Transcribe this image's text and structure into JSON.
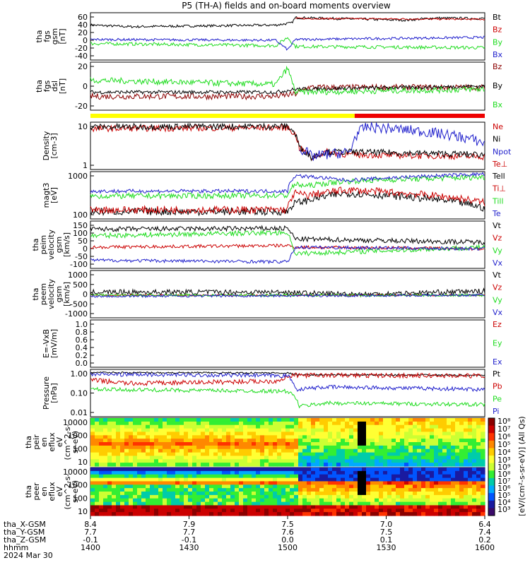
{
  "title": "P5 (TH-A) fields and on-board moments overview",
  "colors": {
    "black": "#000000",
    "red": "#cc0000",
    "green": "#1fdc1f",
    "blue": "#1f1fcc",
    "darkred": "#8b0000",
    "yellow": "#ffff00",
    "barred": "#ee0000"
  },
  "chart_data": [
    {
      "type": "line",
      "id": "p1",
      "ylabel": [
        "tha",
        "fgs",
        "gsm",
        "[nT]"
      ],
      "yticks": [
        "60",
        "40",
        "20",
        "0",
        "-20",
        "-40"
      ],
      "ylim": [
        -45,
        70
      ],
      "series": [
        {
          "name": "Bt",
          "color": "black",
          "segments": [
            [
              0,
              40
            ],
            [
              0.1,
              36
            ],
            [
              0.47,
              40
            ],
            [
              0.51,
              45
            ],
            [
              0.52,
              58
            ],
            [
              0.8,
              52
            ],
            [
              0.87,
              57
            ],
            [
              1,
              56
            ]
          ],
          "noise": 3
        },
        {
          "name": "Bz",
          "color": "red",
          "segments": [
            [
              0.52,
              56
            ],
            [
              1,
              54
            ]
          ],
          "noise": 2
        },
        {
          "name": "By",
          "color": "green",
          "segments": [
            [
              0,
              -5
            ],
            [
              0.47,
              -10
            ],
            [
              0.5,
              10
            ],
            [
              0.52,
              -12
            ],
            [
              1,
              -15
            ]
          ],
          "noise": 4
        },
        {
          "name": "Bx",
          "color": "blue",
          "segments": [
            [
              0,
              5
            ],
            [
              0.47,
              3
            ],
            [
              0.5,
              -20
            ],
            [
              0.52,
              5
            ],
            [
              1,
              10
            ]
          ],
          "noise": 3
        }
      ]
    },
    {
      "type": "line",
      "id": "p2",
      "ylabel": [
        "tha",
        "fgs",
        "dsl",
        "[nT]"
      ],
      "yticks": [
        "20",
        "0",
        "-20"
      ],
      "ylim": [
        -35,
        45
      ],
      "series": [
        {
          "name": "Bz",
          "color": "darkred",
          "segments": [
            [
              0,
              -12
            ],
            [
              0.47,
              -12
            ],
            [
              0.52,
              -8
            ],
            [
              0.55,
              3
            ],
            [
              1,
              3
            ]
          ],
          "noise": 5
        },
        {
          "name": "By",
          "color": "black",
          "segments": [
            [
              0,
              -5
            ],
            [
              0.47,
              -5
            ],
            [
              0.52,
              0
            ],
            [
              1,
              5
            ]
          ],
          "noise": 3
        },
        {
          "name": "Bx",
          "color": "green",
          "segments": [
            [
              0,
              15
            ],
            [
              0.47,
              8
            ],
            [
              0.5,
              35
            ],
            [
              0.52,
              -5
            ],
            [
              1,
              0
            ]
          ],
          "noise": 5
        }
      ]
    },
    {
      "type": "line",
      "id": "p3",
      "ylabel": [
        "Density",
        "[cm-3]"
      ],
      "yticks": [
        "10",
        "1"
      ],
      "ylim": [
        0.3,
        50
      ],
      "scale": "log",
      "series": [
        {
          "name": "Ne",
          "color": "red",
          "segments": [
            [
              0,
              25
            ],
            [
              0.5,
              28
            ],
            [
              0.53,
              3
            ],
            [
              0.56,
              1
            ],
            [
              0.6,
              2
            ],
            [
              0.65,
              1.5
            ],
            [
              1,
              1.2
            ]
          ],
          "noise": 0.15
        },
        {
          "name": "Ni",
          "color": "black",
          "segments": [
            [
              0,
              30
            ],
            [
              0.5,
              32
            ],
            [
              0.53,
              3
            ],
            [
              0.56,
              1.1
            ],
            [
              0.6,
              2
            ],
            [
              0.65,
              2
            ],
            [
              1,
              1.5
            ]
          ],
          "noise": 0.15
        },
        {
          "name": "Npot",
          "color": "blue",
          "segments": [
            [
              0.53,
              3
            ],
            [
              0.56,
              1.2
            ],
            [
              0.66,
              2
            ],
            [
              0.7,
              30
            ],
            [
              1,
              5
            ]
          ],
          "noise": 0.25
        },
        {
          "name": "Te⊥",
          "color": "red",
          "segments": [],
          "noise": 0
        }
      ]
    },
    {
      "type": "line",
      "id": "p4",
      "ylabel": [
        "magt3",
        "[eV]"
      ],
      "yticks": [
        "1000",
        "100"
      ],
      "ylim": [
        8,
        3000
      ],
      "scale": "log",
      "series": [
        {
          "name": "Tell",
          "color": "black",
          "segments": [
            [
              0,
              20
            ],
            [
              0.5,
              20
            ],
            [
              0.52,
              60
            ],
            [
              0.55,
              80
            ],
            [
              0.65,
              200
            ],
            [
              1,
              30
            ]
          ],
          "noise": 0.2
        },
        {
          "name": "Ti⊥",
          "color": "red",
          "segments": [
            [
              0,
              25
            ],
            [
              0.5,
              25
            ],
            [
              0.52,
              200
            ],
            [
              0.55,
              150
            ],
            [
              0.65,
              300
            ],
            [
              1,
              60
            ]
          ],
          "noise": 0.2
        },
        {
          "name": "Till",
          "color": "green",
          "segments": [
            [
              0,
              140
            ],
            [
              0.5,
              150
            ],
            [
              0.52,
              600
            ],
            [
              0.55,
              500
            ],
            [
              0.65,
              900
            ],
            [
              1,
              1500
            ]
          ],
          "noise": 0.15
        },
        {
          "name": "Te",
          "color": "blue",
          "segments": [
            [
              0,
              260
            ],
            [
              0.5,
              260
            ],
            [
              0.52,
              1800
            ],
            [
              0.65,
              1000
            ],
            [
              1,
              2200
            ]
          ],
          "noise": 0.1
        }
      ]
    },
    {
      "type": "line",
      "id": "p5",
      "ylabel": [
        "tha",
        "peim",
        "velocity",
        "gsm",
        "[km/s]"
      ],
      "yticks": [
        "150",
        "100",
        "50",
        "0",
        "-50",
        "-100"
      ],
      "ylim": [
        -120,
        170
      ],
      "series": [
        {
          "name": "Vt",
          "color": "black",
          "segments": [
            [
              0,
              120
            ],
            [
              0.5,
              125
            ],
            [
              0.52,
              60
            ],
            [
              1,
              40
            ]
          ],
          "noise": 15
        },
        {
          "name": "Vz",
          "color": "red",
          "segments": [
            [
              0,
              10
            ],
            [
              0.5,
              20
            ],
            [
              0.52,
              10
            ],
            [
              1,
              0
            ]
          ],
          "noise": 10
        },
        {
          "name": "Vy",
          "color": "green",
          "segments": [
            [
              0,
              80
            ],
            [
              0.5,
              100
            ],
            [
              0.52,
              -30
            ],
            [
              1,
              10
            ]
          ],
          "noise": 15
        },
        {
          "name": "Vx",
          "color": "blue",
          "segments": [
            [
              0,
              -70
            ],
            [
              0.5,
              -80
            ],
            [
              0.52,
              10
            ],
            [
              1,
              0
            ]
          ],
          "noise": 10
        }
      ]
    },
    {
      "type": "line",
      "id": "p6",
      "ylabel": [
        "tha",
        "peem",
        "velocity",
        "gsm",
        "[km/s]"
      ],
      "yticks": [
        "1000",
        "500",
        "0",
        "-500",
        "-1000"
      ],
      "ylim": [
        -1100,
        1200
      ],
      "series": [
        {
          "name": "Vt",
          "color": "black",
          "segments": [
            [
              0,
              150
            ],
            [
              0.5,
              150
            ],
            [
              0.55,
              100
            ],
            [
              0.7,
              50
            ],
            [
              1,
              200
            ]
          ],
          "noise": 120
        },
        {
          "name": "Vz",
          "color": "red",
          "segments": [
            [
              0,
              0
            ],
            [
              1,
              0
            ]
          ],
          "noise": 40
        },
        {
          "name": "Vy",
          "color": "green",
          "segments": [
            [
              0,
              0
            ],
            [
              1,
              0
            ]
          ],
          "noise": 60
        },
        {
          "name": "Vx",
          "color": "blue",
          "segments": [
            [
              0,
              -50
            ],
            [
              1,
              0
            ]
          ],
          "noise": 60
        }
      ]
    },
    {
      "type": "line",
      "id": "p7",
      "ylabel": [
        "E=-VxB",
        "[mV/m]"
      ],
      "yticks": [
        "1.0",
        "0.8",
        "0.6",
        "0.4",
        "0.2",
        "0.0"
      ],
      "ylim": [
        0,
        1
      ],
      "series": [
        {
          "name": "Ez",
          "color": "red",
          "segments": [],
          "noise": 0
        },
        {
          "name": "Ey",
          "color": "green",
          "segments": [],
          "noise": 0
        },
        {
          "name": "Ex",
          "color": "blue",
          "segments": [],
          "noise": 0
        }
      ]
    },
    {
      "type": "line",
      "id": "p8",
      "ylabel": [
        "Pressure",
        "[nPa]"
      ],
      "yticks": [
        "1.00",
        "0.10",
        "0.01"
      ],
      "ylim": [
        0.006,
        1.6
      ],
      "scale": "log",
      "series": [
        {
          "name": "Pt",
          "color": "black",
          "segments": [
            [
              0,
              1.1
            ],
            [
              0.5,
              1.05
            ],
            [
              0.52,
              0.85
            ],
            [
              1,
              0.8
            ]
          ],
          "noise": 0.04
        },
        {
          "name": "Pb",
          "color": "red",
          "segments": [
            [
              0,
              0.45
            ],
            [
              0.1,
              0.3
            ],
            [
              0.47,
              0.4
            ],
            [
              0.52,
              0.8
            ],
            [
              1,
              0.75
            ]
          ],
          "noise": 0.12
        },
        {
          "name": "Pe",
          "color": "green",
          "segments": [
            [
              0,
              0.15
            ],
            [
              0.5,
              0.12
            ],
            [
              0.53,
              0.02
            ],
            [
              0.6,
              0.03
            ],
            [
              1,
              0.025
            ]
          ],
          "noise": 0.1
        },
        {
          "name": "Pi",
          "color": "blue",
          "segments": [
            [
              0,
              0.9
            ],
            [
              0.5,
              0.75
            ],
            [
              0.52,
              0.15
            ],
            [
              0.6,
              0.2
            ],
            [
              1,
              0.15
            ]
          ],
          "noise": 0.1
        }
      ]
    },
    {
      "type": "heatmap",
      "id": "s1",
      "ylabel": [
        "tha",
        "peir",
        "en",
        "eflux",
        "eV",
        "(cm^2-s-",
        "sr-eV)"
      ],
      "yticks": [
        "10000",
        "1000",
        "100",
        "10"
      ]
    },
    {
      "type": "heatmap",
      "id": "s2",
      "ylabel": [
        "tha",
        "peer",
        "en",
        "eflux",
        "eV",
        "(cm^2-s-",
        "sr-eV)"
      ],
      "yticks": [
        "10000",
        "1000",
        "100",
        "10"
      ]
    }
  ],
  "colorbar": {
    "labels": [
      "10⁸",
      "10⁷",
      "10⁶",
      "10⁵",
      "10⁴",
      "10³"
    ],
    "labels2": [
      "10⁹",
      "10⁸",
      "10⁷",
      "10⁶",
      "10⁵",
      "10⁴",
      "10³"
    ],
    "title": "[eV/(cm²-s-sr-eV)] (All Qs)"
  },
  "xaxis": {
    "rows": [
      {
        "label": "tha_X-GSM",
        "values": [
          "8.4",
          "7.9",
          "7.5",
          "7.0",
          "6.4"
        ]
      },
      {
        "label": "tha_Y-GSM",
        "values": [
          "7.7",
          "7.7",
          "7.6",
          "7.5",
          "7.4"
        ]
      },
      {
        "label": "tha_Z-GSM",
        "values": [
          "-0.1",
          "-0.1",
          "0.0",
          "0.1",
          "0.2"
        ]
      },
      {
        "label": "hhmm",
        "values": [
          "1400",
          "1430",
          "1500",
          "1530",
          "1600"
        ]
      }
    ],
    "date": "2024 Mar 30"
  }
}
